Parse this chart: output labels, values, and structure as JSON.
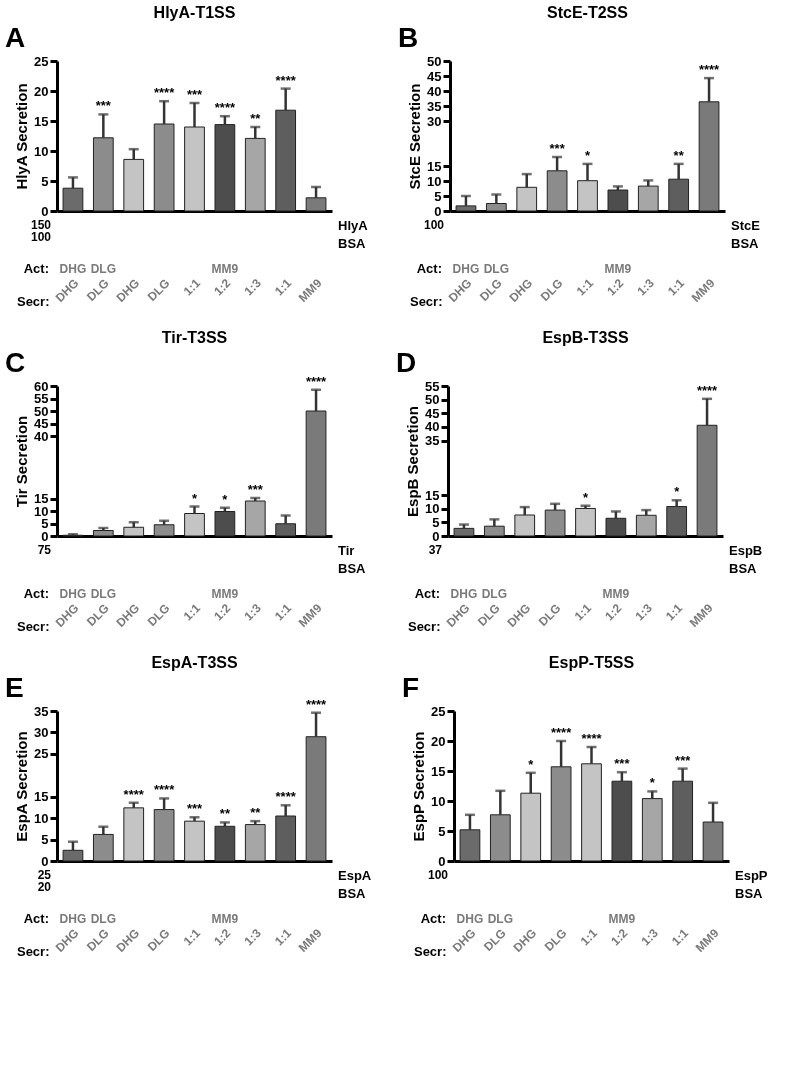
{
  "chart_data": [
    {
      "type": "bar",
      "title": "HlyA-T1SS",
      "ylabel": "HlyA Secretion",
      "xlabel": "Secr:",
      "categories": [
        "DHG",
        "DLG",
        "DHG",
        "DLG",
        "1:1",
        "1:2",
        "1:3",
        "1:1",
        "MM9"
      ],
      "values": [
        3.8,
        12.2,
        8.6,
        14.5,
        14.0,
        14.4,
        12.1,
        16.8,
        2.2
      ],
      "errors": [
        [
          3.8,
          5.6
        ],
        [
          12.2,
          16.1
        ],
        [
          8.6,
          10.3
        ],
        [
          14.5,
          18.3
        ],
        [
          14.0,
          18.0
        ],
        [
          14.4,
          15.8
        ],
        [
          12.1,
          14.0
        ],
        [
          16.8,
          20.4
        ],
        [
          2.2,
          4.0
        ]
      ],
      "colors": [
        "#6b6b6b",
        "#8c8c8c",
        "#c4c4c4",
        "#8c8c8c",
        "#c4c4c4",
        "#4d4d4d",
        "#a6a6a6",
        "#5e5e5e",
        "#7a7a7a"
      ],
      "ylim": [
        0,
        25
      ],
      "yticks": [
        0,
        5,
        10,
        15,
        20,
        25
      ],
      "value_labels": [
        null,
        "***",
        null,
        "****",
        "***",
        "****",
        "**",
        "****",
        null
      ],
      "annotations": [
        "A",
        "150",
        "100",
        "HlyA",
        "BSA",
        "Act:",
        "DHG",
        "DLG",
        "MM9"
      ]
    },
    {
      "type": "bar",
      "title": "StcE-T2SS",
      "ylabel": "StcE Secretion",
      "xlabel": "Secr:",
      "categories": [
        "DHG",
        "DLG",
        "DHG",
        "DLG",
        "1:1",
        "1:2",
        "1:3",
        "1:1",
        "MM9"
      ],
      "values": [
        1.7,
        2.5,
        7.9,
        13.4,
        10.1,
        7.0,
        8.3,
        10.6,
        36.4
      ],
      "errors": [
        [
          1.7,
          5.0
        ],
        [
          2.5,
          5.5
        ],
        [
          7.9,
          12.3
        ],
        [
          13.4,
          18.0
        ],
        [
          10.1,
          15.7
        ],
        [
          7.0,
          8.2
        ],
        [
          8.3,
          10.2
        ],
        [
          10.6,
          15.7
        ],
        [
          36.4,
          44.3
        ]
      ],
      "colors": [
        "#6b6b6b",
        "#8c8c8c",
        "#c4c4c4",
        "#8c8c8c",
        "#c4c4c4",
        "#4d4d4d",
        "#a6a6a6",
        "#5e5e5e",
        "#7a7a7a"
      ],
      "ylim": [
        0,
        50
      ],
      "yticks": [
        0,
        5,
        10,
        15,
        30,
        35,
        40,
        45,
        50
      ],
      "value_labels": [
        null,
        null,
        null,
        "***",
        "*",
        null,
        null,
        "**",
        "****"
      ],
      "annotations": [
        "B",
        "100",
        "StcE",
        "BSA",
        "Act:",
        "DHG",
        "DLG",
        "MM9"
      ]
    },
    {
      "type": "bar",
      "title": "Tir-T3SS",
      "ylabel": "Tir Secretion",
      "xlabel": "Secr:",
      "categories": [
        "DHG",
        "DLG",
        "DHG",
        "DLG",
        "1:1",
        "1:2",
        "1:3",
        "1:1",
        "MM9"
      ],
      "values": [
        0.3,
        2.2,
        3.5,
        4.5,
        9.0,
        9.8,
        14.0,
        4.9,
        50.0
      ],
      "errors": [
        [
          0.3,
          0.7
        ],
        [
          2.2,
          3.2
        ],
        [
          3.5,
          5.5
        ],
        [
          4.5,
          6.1
        ],
        [
          9.0,
          11.8
        ],
        [
          9.8,
          11.3
        ],
        [
          14.0,
          15.2
        ],
        [
          4.9,
          8.2
        ],
        [
          50.0,
          58.5
        ]
      ],
      "colors": [
        "#6b6b6b",
        "#8c8c8c",
        "#c4c4c4",
        "#8c8c8c",
        "#c4c4c4",
        "#4d4d4d",
        "#a6a6a6",
        "#5e5e5e",
        "#7a7a7a"
      ],
      "ylim": [
        0,
        60
      ],
      "yticks": [
        0,
        5,
        10,
        15,
        40,
        45,
        50,
        55,
        60
      ],
      "value_labels": [
        null,
        null,
        null,
        null,
        "*",
        "*",
        "***",
        null,
        "****"
      ],
      "annotations": [
        "C",
        "75",
        "Tir",
        "BSA",
        "Act:",
        "DHG",
        "DLG",
        "MM9"
      ]
    },
    {
      "type": "bar",
      "title": "EspB-T3SS",
      "ylabel": "EspB Secretion",
      "xlabel": "Secr:",
      "categories": [
        "DHG",
        "DLG",
        "DHG",
        "DLG",
        "1:1",
        "1:2",
        "1:3",
        "1:1",
        "MM9"
      ],
      "values": [
        2.8,
        3.6,
        7.7,
        9.5,
        10.1,
        6.5,
        7.6,
        10.8,
        40.6
      ],
      "errors": [
        [
          2.8,
          4.2
        ],
        [
          3.6,
          6.1
        ],
        [
          7.7,
          10.6
        ],
        [
          9.5,
          11.8
        ],
        [
          10.1,
          11.1
        ],
        [
          6.5,
          9.0
        ],
        [
          7.6,
          9.5
        ],
        [
          10.8,
          13.1
        ],
        [
          40.6,
          50.3
        ]
      ],
      "colors": [
        "#6b6b6b",
        "#8c8c8c",
        "#c4c4c4",
        "#8c8c8c",
        "#c4c4c4",
        "#4d4d4d",
        "#a6a6a6",
        "#5e5e5e",
        "#7a7a7a"
      ],
      "ylim": [
        0,
        55
      ],
      "yticks": [
        0,
        5,
        10,
        15,
        35,
        40,
        45,
        50,
        55
      ],
      "value_labels": [
        null,
        null,
        null,
        null,
        "*",
        null,
        null,
        "*",
        "****"
      ],
      "annotations": [
        "D",
        "37",
        "EspB",
        "BSA",
        "Act:",
        "DHG",
        "DLG",
        "MM9"
      ]
    },
    {
      "type": "bar",
      "title": "EspA-T3SS",
      "ylabel": "EspA Secretion",
      "xlabel": "Secr:",
      "categories": [
        "DHG",
        "DLG",
        "DHG",
        "DLG",
        "1:1",
        "1:2",
        "1:3",
        "1:1",
        "MM9"
      ],
      "values": [
        2.5,
        6.2,
        12.4,
        12.0,
        9.3,
        8.1,
        8.5,
        10.5,
        29.0
      ],
      "errors": [
        [
          2.5,
          4.5
        ],
        [
          6.2,
          8.0
        ],
        [
          12.4,
          13.6
        ],
        [
          12.0,
          14.6
        ],
        [
          9.3,
          10.2
        ],
        [
          8.1,
          9.0
        ],
        [
          8.5,
          9.3
        ],
        [
          10.5,
          13.0
        ],
        [
          29.0,
          34.6
        ]
      ],
      "colors": [
        "#6b6b6b",
        "#8c8c8c",
        "#c4c4c4",
        "#8c8c8c",
        "#c4c4c4",
        "#4d4d4d",
        "#a6a6a6",
        "#5e5e5e",
        "#7a7a7a"
      ],
      "ylim": [
        0,
        35
      ],
      "yticks": [
        0,
        5,
        10,
        15,
        25,
        30,
        35
      ],
      "value_labels": [
        null,
        null,
        "****",
        "****",
        "***",
        "**",
        "**",
        "****",
        "****"
      ],
      "annotations": [
        "E",
        "25",
        "20",
        "EspA",
        "BSA",
        "Act:",
        "DHG",
        "DLG",
        "MM9"
      ]
    },
    {
      "type": "bar",
      "title": "EspP-T5SS",
      "ylabel": "EspP Secretion",
      "xlabel": "Secr:",
      "categories": [
        "DHG",
        "DLG",
        "DHG",
        "DLG",
        "1:1",
        "1:2",
        "1:3",
        "1:1",
        "MM9"
      ],
      "values": [
        5.2,
        7.7,
        11.3,
        15.7,
        16.2,
        13.3,
        10.4,
        13.3,
        6.5
      ],
      "errors": [
        [
          5.2,
          7.7
        ],
        [
          7.7,
          11.7
        ],
        [
          11.3,
          14.7
        ],
        [
          15.7,
          20.0
        ],
        [
          16.2,
          19.0
        ],
        [
          13.3,
          14.8
        ],
        [
          10.4,
          11.6
        ],
        [
          13.3,
          15.4
        ],
        [
          6.5,
          9.7
        ]
      ],
      "colors": [
        "#6b6b6b",
        "#8c8c8c",
        "#c4c4c4",
        "#8c8c8c",
        "#c4c4c4",
        "#4d4d4d",
        "#a6a6a6",
        "#5e5e5e",
        "#7a7a7a"
      ],
      "ylim": [
        0,
        25
      ],
      "yticks": [
        0,
        5,
        10,
        15,
        20,
        25
      ],
      "value_labels": [
        null,
        null,
        "*",
        "****",
        "****",
        "***",
        "*",
        "***",
        null
      ],
      "annotations": [
        "F",
        "100",
        "EspP",
        "BSA",
        "Act:",
        "DHG",
        "DLG",
        "MM9"
      ]
    }
  ]
}
